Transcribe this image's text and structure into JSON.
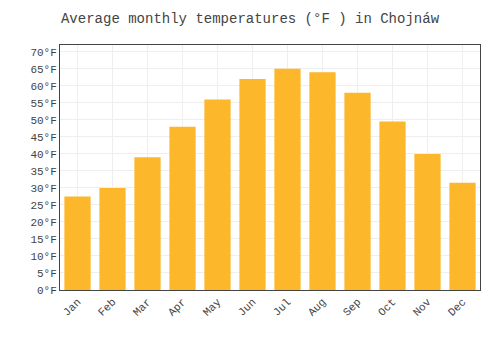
{
  "chart_data": {
    "type": "bar",
    "title": "Average monthly temperatures (°F ) in Chojnáw",
    "categories": [
      "Jan",
      "Feb",
      "Mar",
      "Apr",
      "May",
      "Jun",
      "Jul",
      "Aug",
      "Sep",
      "Oct",
      "Nov",
      "Dec"
    ],
    "values": [
      27.5,
      30.0,
      39.0,
      48.0,
      56.0,
      62.0,
      65.0,
      64.0,
      58.0,
      49.5,
      40.0,
      31.5
    ],
    "color": "#FDB72A",
    "ylim": [
      0,
      72
    ],
    "yticks": [
      {
        "value": 0,
        "label": "0°F"
      },
      {
        "value": 5,
        "label": "5°F"
      },
      {
        "value": 10,
        "label": "10°F"
      },
      {
        "value": 15,
        "label": "15°F"
      },
      {
        "value": 20,
        "label": "20°F"
      },
      {
        "value": 25,
        "label": "25°F"
      },
      {
        "value": 30,
        "label": "30°F"
      },
      {
        "value": 35,
        "label": "35°F"
      },
      {
        "value": 40,
        "label": "40°F"
      },
      {
        "value": 45,
        "label": "45°F"
      },
      {
        "value": 50,
        "label": "50°F"
      },
      {
        "value": 55,
        "label": "55°F"
      },
      {
        "value": 60,
        "label": "60°F"
      },
      {
        "value": 65,
        "label": "65°F"
      },
      {
        "value": 70,
        "label": "70°F"
      }
    ],
    "grid": true
  }
}
